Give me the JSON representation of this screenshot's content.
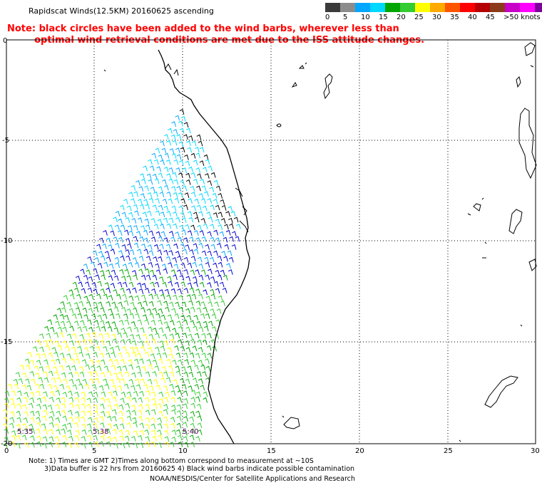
{
  "title": "Rapidscat Winds(12.5KM) 20160625 ascending",
  "note_line1": "Note: black circles have been added to the wind barbs, wherever less than",
  "note_line2": "optimal wind retrieval conditions are met due to the ISS attitude changes.",
  "legend": {
    "colors": [
      "#3a3a3a",
      "#8c8c8c",
      "#00a6ff",
      "#00d8ff",
      "#00a500",
      "#33cc33",
      "#ffff00",
      "#ffaa00",
      "#ff5500",
      "#ff0000",
      "#b40000",
      "#8b3a1a",
      "#c800c8",
      "#ff00ff",
      "#7d009b",
      "#3d0066"
    ],
    "labels": [
      "0",
      "5",
      "10",
      "15",
      "20",
      "25",
      "30",
      "35",
      "40",
      "45",
      ">50 knots"
    ]
  },
  "axes": {
    "y_labels": [
      "0",
      "-5",
      "-10",
      "-15",
      "-20"
    ],
    "x_labels": [
      "0",
      "5",
      "10",
      "15",
      "20",
      "25",
      "30"
    ]
  },
  "times": [
    "5:35",
    "5:38",
    "5:40"
  ],
  "footer": {
    "line1": "Note: 1) Times are GMT 2)Times along bottom correspond to measurement at ~10S",
    "line2": "3)Data buffer is 22 hrs from 20160625 4) Black wind barbs indicate possible contamination",
    "line3": "NOAA/NESDIS/Center for Satellite Applications and Research"
  }
}
